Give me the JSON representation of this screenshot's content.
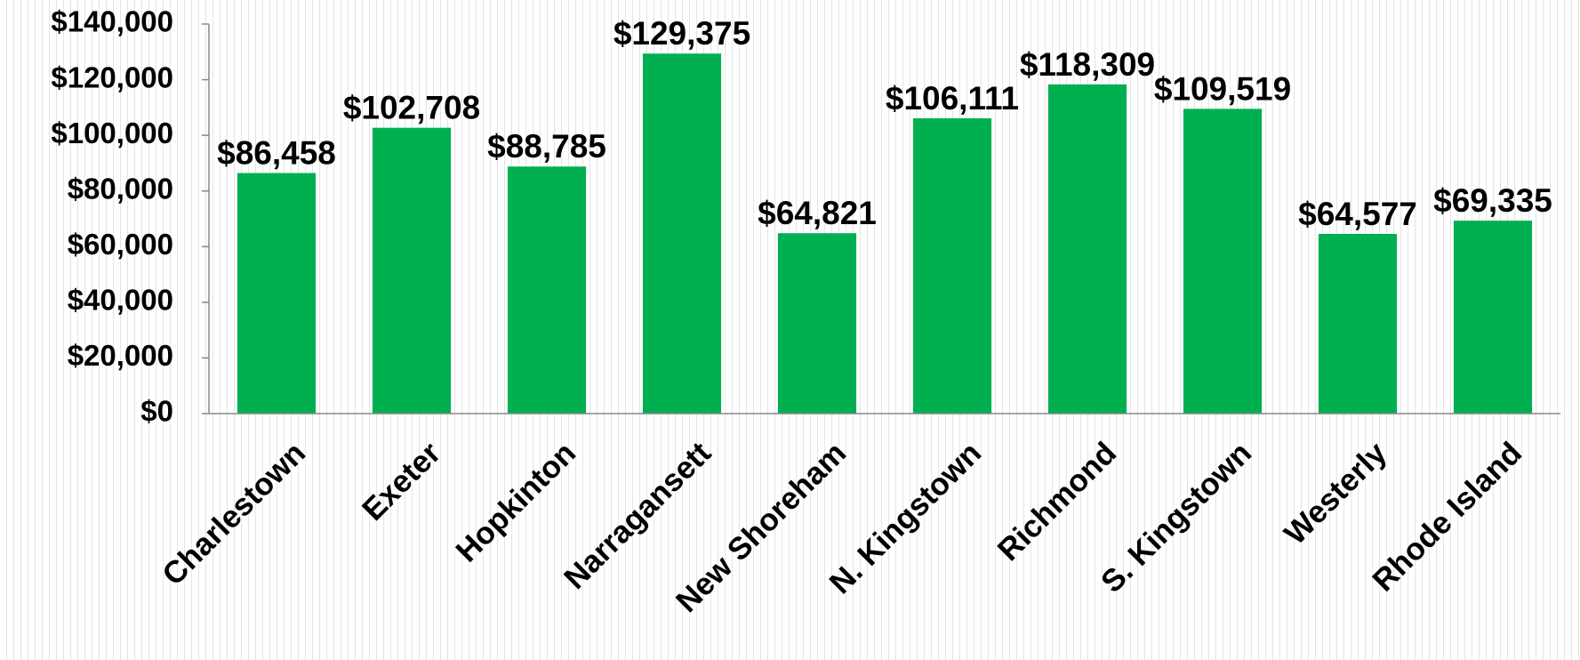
{
  "chart_data": {
    "type": "bar",
    "categories": [
      "Charlestown",
      "Exeter",
      "Hopkinton",
      "Narragansett",
      "New Shoreham",
      "N. Kingstown",
      "Richmond",
      "S. Kingstown",
      "Westerly",
      "Rhode Island"
    ],
    "values": [
      86458,
      102708,
      88785,
      129375,
      64821,
      106111,
      118309,
      109519,
      64577,
      69335
    ],
    "value_labels": [
      "$86,458",
      "$102,708",
      "$88,785",
      "$129,375",
      "$64,821",
      "$106,111",
      "$118,309",
      "$109,519",
      "$64,577",
      "$69,335"
    ],
    "color": "#00b050",
    "ylim": [
      0,
      140000
    ],
    "yticks": [
      {
        "value": 0,
        "label": "$0"
      },
      {
        "value": 20000,
        "label": "$20,000"
      },
      {
        "value": 40000,
        "label": "$40,000"
      },
      {
        "value": 60000,
        "label": "$60,000"
      },
      {
        "value": 80000,
        "label": "$80,000"
      },
      {
        "value": 100000,
        "label": "$100,000"
      },
      {
        "value": 120000,
        "label": "$120,000"
      },
      {
        "value": 140000,
        "label": "$140,000"
      }
    ],
    "grid": false
  }
}
